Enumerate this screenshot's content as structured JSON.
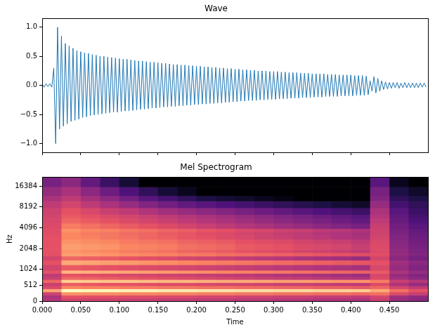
{
  "chart_data": [
    {
      "type": "line",
      "title": "Wave",
      "color": "#1f77b4",
      "grid": false,
      "tick_labels": "y",
      "xlim": [
        0,
        0.5
      ],
      "ylim": [
        -1.15,
        1.15
      ],
      "xticks": [
        {
          "value": 0,
          "label": "0.000"
        },
        {
          "value": 0.05,
          "label": "0.050"
        },
        {
          "value": 0.1,
          "label": "0.100"
        },
        {
          "value": 0.15,
          "label": "0.150"
        },
        {
          "value": 0.2,
          "label": "0.200"
        },
        {
          "value": 0.25,
          "label": "0.250"
        },
        {
          "value": 0.3,
          "label": "0.300"
        },
        {
          "value": 0.35,
          "label": "0.350"
        },
        {
          "value": 0.4,
          "label": "0.400"
        },
        {
          "value": 0.45,
          "label": "0.450"
        }
      ],
      "yticks": [
        {
          "value": -1,
          "label": "−1.0"
        },
        {
          "value": -0.5,
          "label": "−0.5"
        },
        {
          "value": 0,
          "label": "0.0"
        },
        0.5,
        {
          "value": 1,
          "label": "1.0"
        }
      ],
      "x": [
        0,
        0.0025,
        0.005,
        0.0075,
        0.01,
        0.0125,
        0.015,
        0.0175,
        0.02,
        0.0225,
        0.025,
        0.0275,
        0.03,
        0.0325,
        0.035,
        0.0375,
        0.04,
        0.0425,
        0.045,
        0.0475,
        0.05,
        0.0525,
        0.055,
        0.0575,
        0.06,
        0.0625,
        0.065,
        0.0675,
        0.07,
        0.0725,
        0.075,
        0.0775,
        0.08,
        0.0825,
        0.085,
        0.0875,
        0.09,
        0.0925,
        0.095,
        0.0975,
        0.1,
        0.1025,
        0.105,
        0.1075,
        0.11,
        0.1125,
        0.115,
        0.1175,
        0.12,
        0.1225,
        0.125,
        0.1275,
        0.13,
        0.1325,
        0.135,
        0.1375,
        0.14,
        0.1425,
        0.145,
        0.1475,
        0.15,
        0.1525,
        0.155,
        0.1575,
        0.16,
        0.1625,
        0.165,
        0.1675,
        0.17,
        0.1725,
        0.175,
        0.1775,
        0.18,
        0.1825,
        0.185,
        0.1875,
        0.19,
        0.1925,
        0.195,
        0.1975,
        0.2,
        0.2025,
        0.205,
        0.2075,
        0.21,
        0.2125,
        0.215,
        0.2175,
        0.22,
        0.2225,
        0.225,
        0.2275,
        0.23,
        0.2325,
        0.235,
        0.2375,
        0.24,
        0.2425,
        0.245,
        0.2475,
        0.25,
        0.2525,
        0.255,
        0.2575,
        0.26,
        0.2625,
        0.265,
        0.2675,
        0.27,
        0.2725,
        0.275,
        0.2775,
        0.28,
        0.2825,
        0.285,
        0.2875,
        0.29,
        0.2925,
        0.295,
        0.2975,
        0.3,
        0.3025,
        0.305,
        0.3075,
        0.31,
        0.3125,
        0.315,
        0.3175,
        0.32,
        0.3225,
        0.325,
        0.3275,
        0.33,
        0.3325,
        0.335,
        0.3375,
        0.34,
        0.3425,
        0.345,
        0.3475,
        0.35,
        0.3525,
        0.355,
        0.3575,
        0.36,
        0.3625,
        0.365,
        0.3675,
        0.37,
        0.3725,
        0.375,
        0.3775,
        0.38,
        0.3825,
        0.385,
        0.3875,
        0.39,
        0.3925,
        0.395,
        0.3975,
        0.4,
        0.4025,
        0.405,
        0.4075,
        0.41,
        0.4125,
        0.415,
        0.4175,
        0.42,
        0.4225,
        0.425,
        0.4275,
        0.43,
        0.4325,
        0.435,
        0.4375,
        0.44,
        0.4425,
        0.445,
        0.4475,
        0.45,
        0.4525,
        0.455,
        0.4575,
        0.46,
        0.4625,
        0.465,
        0.4675,
        0.47,
        0.4725,
        0.475,
        0.4775,
        0.48,
        0.4825,
        0.485,
        0.4875,
        0.49,
        0.4925,
        0.495,
        0.4975
      ],
      "values": [
        0.02,
        -0.03,
        0.03,
        -0.02,
        0.03,
        -0.03,
        0.3,
        -1.0,
        1.0,
        -0.75,
        0.85,
        -0.7,
        0.72,
        -0.66,
        0.68,
        -0.62,
        0.64,
        -0.6,
        0.6,
        -0.58,
        0.58,
        -0.55,
        0.56,
        -0.54,
        0.55,
        -0.52,
        0.53,
        -0.51,
        0.52,
        -0.5,
        0.5,
        -0.49,
        0.5,
        -0.48,
        0.49,
        -0.47,
        0.48,
        -0.46,
        0.47,
        -0.46,
        0.46,
        -0.45,
        0.45,
        -0.44,
        0.45,
        -0.44,
        0.44,
        -0.43,
        0.43,
        -0.42,
        0.42,
        -0.41,
        0.42,
        -0.41,
        0.41,
        -0.4,
        0.4,
        -0.39,
        0.4,
        -0.39,
        0.39,
        -0.38,
        0.38,
        -0.37,
        0.38,
        -0.37,
        0.37,
        -0.36,
        0.36,
        -0.36,
        0.36,
        -0.35,
        0.35,
        -0.35,
        0.35,
        -0.34,
        0.34,
        -0.34,
        0.34,
        -0.33,
        0.33,
        -0.33,
        0.33,
        -0.32,
        0.32,
        -0.32,
        0.32,
        -0.31,
        0.31,
        -0.31,
        0.31,
        -0.3,
        0.3,
        -0.3,
        0.3,
        -0.29,
        0.29,
        -0.29,
        0.29,
        -0.28,
        0.28,
        -0.28,
        0.28,
        -0.27,
        0.27,
        -0.27,
        0.27,
        -0.26,
        0.26,
        -0.26,
        0.26,
        -0.26,
        0.25,
        -0.25,
        0.25,
        -0.25,
        0.25,
        -0.24,
        0.24,
        -0.24,
        0.24,
        -0.24,
        0.24,
        -0.23,
        0.23,
        -0.23,
        0.23,
        -0.23,
        0.22,
        -0.22,
        0.22,
        -0.22,
        0.22,
        -0.22,
        0.21,
        -0.21,
        0.21,
        -0.21,
        0.21,
        -0.21,
        0.2,
        -0.2,
        0.2,
        -0.2,
        0.2,
        -0.2,
        0.2,
        -0.19,
        0.19,
        -0.19,
        0.19,
        -0.19,
        0.19,
        -0.19,
        0.18,
        -0.18,
        0.18,
        -0.18,
        0.18,
        -0.18,
        0.18,
        -0.18,
        0.17,
        -0.17,
        0.17,
        -0.17,
        0.17,
        -0.17,
        0.16,
        -0.16,
        0.08,
        -0.1,
        0.15,
        -0.13,
        0.12,
        -0.1,
        0.08,
        -0.07,
        0.06,
        -0.06,
        0.05,
        -0.05,
        0.05,
        -0.04,
        0.05,
        -0.05,
        0.04,
        -0.04,
        0.05,
        -0.04,
        0.04,
        -0.04,
        0.04,
        -0.04,
        0.04,
        -0.04,
        0.04,
        -0.03,
        0.04,
        -0.03
      ]
    },
    {
      "type": "heatmap",
      "title": "Mel Spectrogram",
      "xlabel": "Time",
      "ylabel": "Hz",
      "grid": false,
      "xlim": [
        0,
        0.5
      ],
      "ylim": [
        0,
        22050
      ],
      "xticks": [
        {
          "value": 0,
          "label": "0.000"
        },
        {
          "value": 0.05,
          "label": "0.050"
        },
        {
          "value": 0.1,
          "label": "0.100"
        },
        {
          "value": 0.15,
          "label": "0.150"
        },
        {
          "value": 0.2,
          "label": "0.200"
        },
        {
          "value": 0.25,
          "label": "0.250"
        },
        {
          "value": 0.3,
          "label": "0.300"
        },
        {
          "value": 0.35,
          "label": "0.350"
        },
        {
          "value": 0.4,
          "label": "0.400"
        },
        {
          "value": 0.45,
          "label": "0.450"
        }
      ],
      "yticks": [
        0,
        512,
        1024,
        2048,
        4096,
        8192,
        16384
      ],
      "time_bins": [
        0,
        0.025,
        0.05,
        0.075,
        0.1,
        0.125,
        0.15,
        0.175,
        0.2,
        0.225,
        0.25,
        0.275,
        0.3,
        0.325,
        0.35,
        0.375,
        0.4,
        0.425,
        0.45,
        0.475,
        0.5
      ],
      "freq_bins": [
        0,
        100,
        200,
        300,
        400,
        500,
        600,
        700,
        800,
        900,
        1000,
        1200,
        1400,
        1600,
        1800,
        2000,
        2400,
        2800,
        3200,
        3600,
        4000,
        4800,
        5600,
        6400,
        8000,
        10000,
        12000,
        16000,
        22050
      ],
      "cells": [
        [
          -40,
          -34,
          -35,
          -35,
          -36,
          -36,
          -37,
          -37,
          -38,
          -38,
          -39,
          -39,
          -40,
          -40,
          -41,
          -41,
          -42,
          -36,
          -45,
          -48
        ],
        [
          -42,
          -30,
          -31,
          -31,
          -32,
          -32,
          -33,
          -33,
          -34,
          -34,
          -35,
          -35,
          -36,
          -36,
          -37,
          -37,
          -38,
          -34,
          -44,
          -47
        ],
        [
          -35,
          -18,
          -19,
          -19,
          -20,
          -20,
          -21,
          -21,
          -22,
          -22,
          -23,
          -23,
          -24,
          -24,
          -25,
          -25,
          -26,
          -24,
          -32,
          -36
        ],
        [
          -15,
          0,
          -1,
          -1,
          -2,
          -2,
          -3,
          -3,
          -4,
          -4,
          -5,
          -5,
          -6,
          -6,
          -7,
          -7,
          -8,
          -14,
          -24,
          -30
        ],
        [
          -32,
          -20,
          -21,
          -21,
          -22,
          -22,
          -23,
          -23,
          -24,
          -24,
          -25,
          -25,
          -26,
          -26,
          -27,
          -27,
          -28,
          -26,
          -34,
          -38
        ],
        [
          -36,
          -28,
          -29,
          -30,
          -30,
          -31,
          -32,
          -32,
          -33,
          -34,
          -34,
          -35,
          -36,
          -36,
          -37,
          -38,
          -38,
          -32,
          -42,
          -46
        ],
        [
          -26,
          -8,
          -9,
          -10,
          -10,
          -11,
          -12,
          -12,
          -13,
          -14,
          -14,
          -15,
          -16,
          -16,
          -17,
          -18,
          -18,
          -22,
          -36,
          -40
        ],
        [
          -36,
          -26,
          -27,
          -28,
          -29,
          -30,
          -31,
          -32,
          -33,
          -34,
          -35,
          -36,
          -37,
          -38,
          -39,
          -40,
          -41,
          -32,
          -44,
          -48
        ],
        [
          -38,
          -30,
          -31,
          -32,
          -33,
          -34,
          -35,
          -36,
          -37,
          -38,
          -39,
          -40,
          -41,
          -42,
          -43,
          -44,
          -45,
          -33,
          -46,
          -50
        ],
        [
          -30,
          -12,
          -13,
          -14,
          -15,
          -16,
          -17,
          -18,
          -19,
          -20,
          -21,
          -22,
          -23,
          -24,
          -25,
          -26,
          -27,
          -28,
          -42,
          -46
        ],
        [
          -34,
          -28,
          -29,
          -30,
          -31,
          -32,
          -33,
          -34,
          -35,
          -36,
          -37,
          -38,
          -39,
          -40,
          -41,
          -42,
          -43,
          -33,
          -46,
          -50
        ],
        [
          -30,
          -14,
          -15,
          -16,
          -17,
          -18,
          -19,
          -20,
          -21,
          -22,
          -23,
          -24,
          -25,
          -26,
          -27,
          -28,
          -29,
          -30,
          -44,
          -48
        ],
        [
          -34,
          -26,
          -27,
          -28,
          -30,
          -31,
          -32,
          -34,
          -35,
          -36,
          -38,
          -39,
          -40,
          -42,
          -43,
          -44,
          -46,
          -34,
          -48,
          -52
        ],
        [
          -30,
          -16,
          -17,
          -18,
          -19,
          -20,
          -21,
          -22,
          -23,
          -24,
          -25,
          -26,
          -27,
          -28,
          -29,
          -30,
          -31,
          -31,
          -46,
          -50
        ],
        [
          -30,
          -18,
          -19,
          -20,
          -22,
          -23,
          -24,
          -26,
          -27,
          -28,
          -30,
          -31,
          -32,
          -34,
          -35,
          -36,
          -38,
          -32,
          -47,
          -51
        ],
        [
          -30,
          -16,
          -17,
          -18,
          -20,
          -21,
          -22,
          -24,
          -25,
          -26,
          -28,
          -29,
          -30,
          -32,
          -33,
          -34,
          -36,
          -32,
          -48,
          -52
        ],
        [
          -30,
          -18,
          -19,
          -20,
          -22,
          -23,
          -24,
          -26,
          -27,
          -28,
          -30,
          -31,
          -32,
          -34,
          -35,
          -36,
          -38,
          -33,
          -49,
          -53
        ],
        [
          -30,
          -20,
          -21,
          -23,
          -24,
          -26,
          -27,
          -29,
          -30,
          -32,
          -33,
          -35,
          -36,
          -38,
          -39,
          -41,
          -42,
          -34,
          -50,
          -54
        ],
        [
          -31,
          -20,
          -22,
          -23,
          -25,
          -26,
          -28,
          -29,
          -31,
          -32,
          -34,
          -35,
          -37,
          -38,
          -40,
          -41,
          -43,
          -35,
          -51,
          -55
        ],
        [
          -31,
          -18,
          -20,
          -21,
          -23,
          -24,
          -26,
          -27,
          -29,
          -30,
          -32,
          -33,
          -35,
          -36,
          -38,
          -39,
          -41,
          -35,
          -52,
          -56
        ],
        [
          -32,
          -22,
          -24,
          -26,
          -28,
          -30,
          -32,
          -34,
          -36,
          -38,
          -40,
          -42,
          -44,
          -46,
          -48,
          -50,
          -52,
          -36,
          -53,
          -58
        ],
        [
          -33,
          -26,
          -28,
          -30,
          -32,
          -34,
          -36,
          -38,
          -40,
          -42,
          -44,
          -46,
          -48,
          -50,
          -52,
          -54,
          -56,
          -38,
          -55,
          -60
        ],
        [
          -34,
          -28,
          -30,
          -32,
          -34,
          -36,
          -38,
          -40,
          -42,
          -44,
          -46,
          -48,
          -50,
          -52,
          -54,
          -56,
          -58,
          -40,
          -56,
          -62
        ],
        [
          -35,
          -30,
          -33,
          -36,
          -38,
          -41,
          -44,
          -46,
          -48,
          -50,
          -52,
          -54,
          -56,
          -58,
          -60,
          -62,
          -64,
          -42,
          -58,
          -64
        ],
        [
          -38,
          -34,
          -38,
          -42,
          -46,
          -50,
          -53,
          -56,
          -58,
          -60,
          -62,
          -64,
          -66,
          -68,
          -70,
          -72,
          -74,
          -46,
          -62,
          -66
        ],
        [
          -42,
          -38,
          -43,
          -48,
          -53,
          -58,
          -62,
          -66,
          -70,
          -72,
          -74,
          -76,
          -78,
          -80,
          -80,
          -80,
          -80,
          -50,
          -66,
          -70
        ],
        [
          -46,
          -42,
          -48,
          -54,
          -60,
          -66,
          -72,
          -76,
          -80,
          -80,
          -80,
          -80,
          -80,
          -80,
          -80,
          -80,
          -80,
          -52,
          -70,
          -74
        ],
        [
          -52,
          -48,
          -56,
          -64,
          -72,
          -80,
          -80,
          -80,
          -80,
          -80,
          -80,
          -80,
          -80,
          -80,
          -80,
          -80,
          -80,
          -58,
          -76,
          -80
        ]
      ]
    }
  ]
}
